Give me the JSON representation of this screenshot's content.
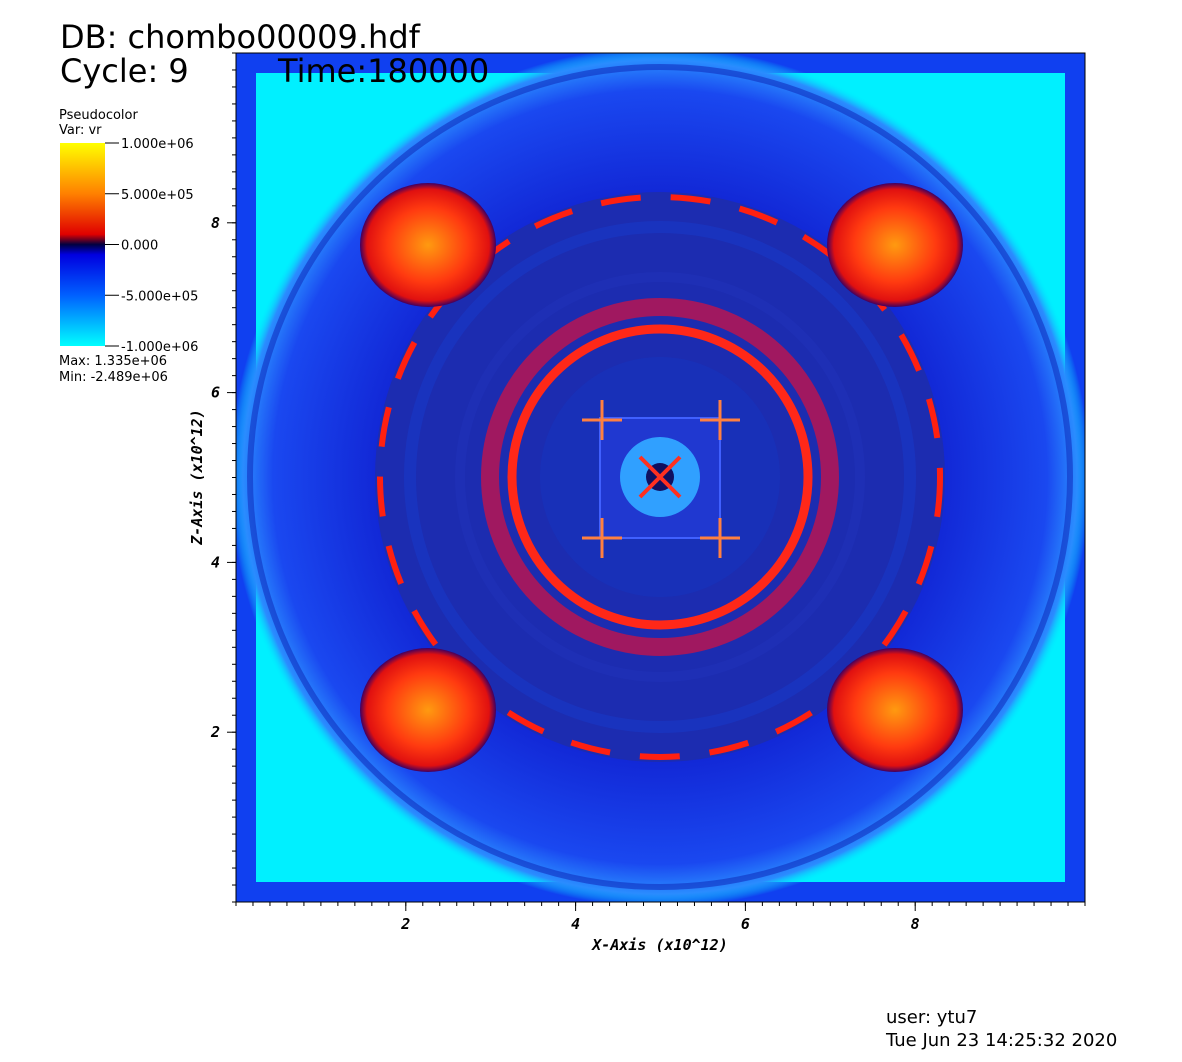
{
  "chart_data": {
    "type": "pseudocolor",
    "db": "DB: chombo00009.hdf",
    "cycle": "Cycle: 9",
    "time": "Time:180000",
    "legend_title": "Pseudocolor",
    "variable": "Var: vr",
    "colorbar_lim": [
      -1000000,
      1000000
    ],
    "colorbar_ticks": [
      {
        "value": 1000000,
        "label": "1.000e+06"
      },
      {
        "value": 500000,
        "label": "5.000e+05"
      },
      {
        "value": 0,
        "label": "0.000"
      },
      {
        "value": -500000,
        "label": "-5.000e+05"
      },
      {
        "value": -1000000,
        "label": "-1.000e+06"
      }
    ],
    "max_text": "Max:  1.335e+06",
    "min_text": "Min: -2.489e+06",
    "xlabel": "X-Axis (x10^12)",
    "ylabel": "Z-Axis (x10^12)",
    "xlim": [
      0,
      10
    ],
    "ylim": [
      0,
      10
    ],
    "xticks": [
      2,
      4,
      6,
      8
    ],
    "yticks": [
      2,
      4,
      6,
      8
    ],
    "user": "user: ytu7",
    "date": "Tue Jun 23 14:25:32 2020"
  }
}
